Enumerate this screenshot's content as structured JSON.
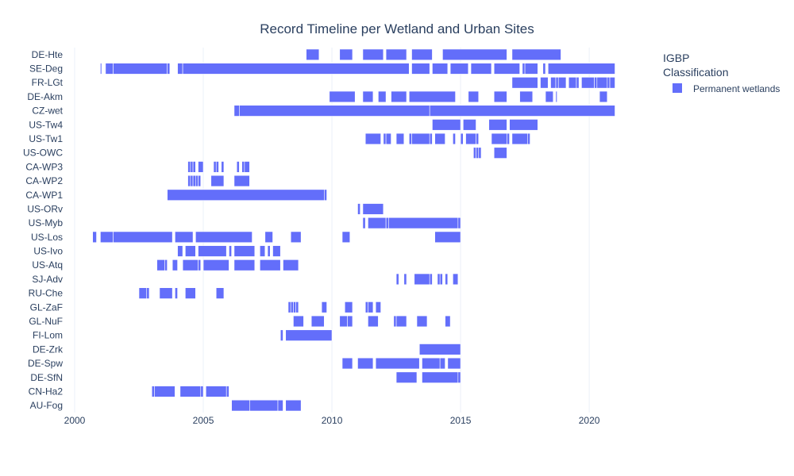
{
  "chart_data": {
    "type": "bar",
    "orientation": "horizontal-timeline",
    "title": "Record Timeline per Wetland and Urban Sites",
    "xlabel": "",
    "ylabel": "",
    "xlim": [
      2000,
      2021.2
    ],
    "x_ticks": [
      2000,
      2005,
      2010,
      2015,
      2020
    ],
    "grid": true,
    "legend": {
      "title_lines": [
        "IGBP",
        "Classification"
      ],
      "position": "top-right",
      "entries": [
        {
          "name": "Permanent wetlands",
          "color": "#636efa"
        }
      ]
    },
    "categories": [
      "AU-Fog",
      "CN-Ha2",
      "DE-SfN",
      "DE-Spw",
      "DE-Zrk",
      "FI-Lom",
      "GL-NuF",
      "GL-ZaF",
      "RU-Che",
      "SJ-Adv",
      "US-Atq",
      "US-Ivo",
      "US-Los",
      "US-Myb",
      "US-ORv",
      "CA-WP1",
      "CA-WP2",
      "CA-WP3",
      "US-OWC",
      "US-Tw1",
      "US-Tw4",
      "CZ-wet",
      "DE-Akm",
      "FR-LGt",
      "SE-Deg",
      "DE-Hte"
    ],
    "series": [
      {
        "name": "Permanent wetlands",
        "color": "#636efa",
        "segments": {
          "AU-Fog": [
            [
              2006.1,
              2006.8
            ],
            [
              2006.8,
              2007.9
            ],
            [
              2007.9,
              2008.1
            ],
            [
              2008.2,
              2008.8
            ]
          ],
          "CN-Ha2": [
            [
              2003.0,
              2003.1
            ],
            [
              2003.1,
              2003.9
            ],
            [
              2004.1,
              2004.9
            ],
            [
              2004.9,
              2005.0
            ],
            [
              2005.1,
              2005.9
            ],
            [
              2005.9,
              2006.0
            ]
          ],
          "DE-SfN": [
            [
              2012.5,
              2013.3
            ],
            [
              2013.5,
              2014.9
            ],
            [
              2014.9,
              2015.0
            ]
          ],
          "DE-Spw": [
            [
              2010.4,
              2010.8
            ],
            [
              2011.0,
              2011.6
            ],
            [
              2011.7,
              2013.4
            ],
            [
              2013.5,
              2014.2
            ],
            [
              2014.2,
              2014.4
            ],
            [
              2014.5,
              2015.0
            ]
          ],
          "DE-Zrk": [
            [
              2013.4,
              2015.0
            ]
          ],
          "FI-Lom": [
            [
              2008.0,
              2008.1
            ],
            [
              2008.2,
              2010.0
            ]
          ],
          "GL-NuF": [
            [
              2008.5,
              2008.9
            ],
            [
              2009.2,
              2009.7
            ],
            [
              2010.3,
              2010.6
            ],
            [
              2010.6,
              2010.8
            ],
            [
              2011.4,
              2011.8
            ],
            [
              2012.4,
              2012.5
            ],
            [
              2012.5,
              2012.9
            ],
            [
              2013.3,
              2013.7
            ],
            [
              2014.4,
              2014.6
            ]
          ],
          "GL-ZaF": [
            [
              2008.3,
              2008.4
            ],
            [
              2008.4,
              2008.5
            ],
            [
              2008.5,
              2008.6
            ],
            [
              2008.6,
              2008.7
            ],
            [
              2009.6,
              2009.8
            ],
            [
              2010.5,
              2010.8
            ],
            [
              2011.3,
              2011.4
            ],
            [
              2011.4,
              2011.6
            ],
            [
              2011.7,
              2011.9
            ]
          ],
          "RU-Che": [
            [
              2002.5,
              2002.8
            ],
            [
              2002.8,
              2002.9
            ],
            [
              2003.3,
              2003.8
            ],
            [
              2003.9,
              2004.0
            ],
            [
              2004.3,
              2004.7
            ],
            [
              2005.5,
              2005.8
            ]
          ],
          "SJ-Adv": [
            [
              2012.5,
              2012.6
            ],
            [
              2012.8,
              2012.9
            ],
            [
              2013.2,
              2013.8
            ],
            [
              2013.8,
              2013.9
            ],
            [
              2014.1,
              2014.2
            ],
            [
              2014.2,
              2014.3
            ],
            [
              2014.4,
              2014.5
            ],
            [
              2014.7,
              2014.9
            ]
          ],
          "US-Atq": [
            [
              2003.2,
              2003.5
            ],
            [
              2003.5,
              2003.6
            ],
            [
              2003.8,
              2004.0
            ],
            [
              2004.2,
              2004.8
            ],
            [
              2004.8,
              2004.9
            ],
            [
              2005.0,
              2006.0
            ],
            [
              2006.2,
              2007.0
            ],
            [
              2007.2,
              2008.0
            ],
            [
              2008.1,
              2008.7
            ]
          ],
          "US-Ivo": [
            [
              2004.0,
              2004.2
            ],
            [
              2004.3,
              2004.7
            ],
            [
              2004.8,
              2005.9
            ],
            [
              2006.0,
              2006.1
            ],
            [
              2006.2,
              2007.0
            ],
            [
              2007.2,
              2007.4
            ],
            [
              2007.5,
              2007.6
            ],
            [
              2007.7,
              2008.0
            ]
          ],
          "US-Los": [
            [
              2000.7,
              2000.85
            ],
            [
              2001.0,
              2001.5
            ],
            [
              2001.5,
              2003.8
            ],
            [
              2003.9,
              2004.6
            ],
            [
              2004.7,
              2006.9
            ],
            [
              2007.4,
              2007.7
            ],
            [
              2008.4,
              2008.8
            ],
            [
              2010.4,
              2010.7
            ],
            [
              2014.0,
              2015.0
            ]
          ],
          "US-Myb": [
            [
              2011.2,
              2011.3
            ],
            [
              2011.4,
              2012.1
            ],
            [
              2012.1,
              2012.2
            ],
            [
              2012.2,
              2014.9
            ],
            [
              2014.9,
              2015.0
            ]
          ],
          "US-ORv": [
            [
              2011.0,
              2011.1
            ],
            [
              2011.2,
              2012.0
            ]
          ],
          "CA-WP1": [
            [
              2003.6,
              2009.7
            ],
            [
              2009.7,
              2009.8
            ]
          ],
          "CA-WP2": [
            [
              2004.4,
              2004.5
            ],
            [
              2004.5,
              2004.6
            ],
            [
              2004.6,
              2004.7
            ],
            [
              2004.7,
              2004.8
            ],
            [
              2004.8,
              2004.9
            ],
            [
              2005.3,
              2005.8
            ],
            [
              2006.2,
              2006.8
            ]
          ],
          "CA-WP3": [
            [
              2004.4,
              2004.5
            ],
            [
              2004.5,
              2004.6
            ],
            [
              2004.6,
              2004.7
            ],
            [
              2004.8,
              2005.0
            ],
            [
              2005.4,
              2005.5
            ],
            [
              2005.5,
              2005.6
            ],
            [
              2005.7,
              2005.8
            ],
            [
              2006.3,
              2006.4
            ],
            [
              2006.5,
              2006.6
            ],
            [
              2006.6,
              2006.8
            ]
          ],
          "US-OWC": [
            [
              2015.5,
              2015.6
            ],
            [
              2015.6,
              2015.7
            ],
            [
              2015.7,
              2015.8
            ],
            [
              2016.3,
              2016.8
            ]
          ],
          "US-Tw1": [
            [
              2011.3,
              2011.9
            ],
            [
              2012.0,
              2012.1
            ],
            [
              2012.1,
              2012.3
            ],
            [
              2012.5,
              2012.8
            ],
            [
              2013.0,
              2013.1
            ],
            [
              2013.1,
              2013.8
            ],
            [
              2013.8,
              2013.9
            ],
            [
              2014.0,
              2014.4
            ],
            [
              2014.7,
              2014.8
            ],
            [
              2015.0,
              2015.1
            ],
            [
              2015.2,
              2015.6
            ],
            [
              2015.6,
              2015.7
            ],
            [
              2016.2,
              2016.8
            ],
            [
              2016.8,
              2016.9
            ],
            [
              2017.0,
              2017.6
            ],
            [
              2017.6,
              2017.7
            ]
          ],
          "US-Tw4": [
            [
              2013.9,
              2015.0
            ],
            [
              2015.1,
              2015.6
            ],
            [
              2016.1,
              2016.8
            ],
            [
              2016.9,
              2018.0
            ]
          ],
          "CZ-wet": [
            [
              2006.2,
              2006.4
            ],
            [
              2006.4,
              2013.8
            ],
            [
              2013.8,
              2021.0
            ]
          ],
          "DE-Akm": [
            [
              2009.9,
              2010.9
            ],
            [
              2011.2,
              2011.6
            ],
            [
              2011.8,
              2012.1
            ],
            [
              2012.3,
              2012.9
            ],
            [
              2013.0,
              2014.8
            ],
            [
              2015.3,
              2015.7
            ],
            [
              2016.3,
              2016.8
            ],
            [
              2017.3,
              2017.8
            ],
            [
              2018.3,
              2018.6
            ],
            [
              2018.7,
              2018.75
            ],
            [
              2020.4,
              2020.7
            ]
          ],
          "FR-LGt": [
            [
              2017.0,
              2018.0
            ],
            [
              2018.1,
              2018.4
            ],
            [
              2018.5,
              2018.7
            ],
            [
              2018.7,
              2018.8
            ],
            [
              2018.8,
              2019.1
            ],
            [
              2019.2,
              2019.5
            ],
            [
              2019.5,
              2019.6
            ],
            [
              2019.7,
              2020.2
            ],
            [
              2020.2,
              2020.3
            ],
            [
              2020.3,
              2020.7
            ],
            [
              2020.7,
              2020.8
            ],
            [
              2020.8,
              2021.0
            ]
          ],
          "SE-Deg": [
            [
              2001.0,
              2001.05
            ],
            [
              2001.2,
              2001.5
            ],
            [
              2001.5,
              2003.6
            ],
            [
              2003.6,
              2003.7
            ],
            [
              2004.0,
              2004.2
            ],
            [
              2004.2,
              2013.0
            ],
            [
              2013.1,
              2013.8
            ],
            [
              2013.9,
              2014.5
            ],
            [
              2014.6,
              2015.3
            ],
            [
              2015.4,
              2016.2
            ],
            [
              2016.3,
              2017.3
            ],
            [
              2017.4,
              2017.5
            ],
            [
              2017.5,
              2018.0
            ],
            [
              2018.2,
              2018.3
            ],
            [
              2018.4,
              2021.0
            ]
          ],
          "DE-Hte": [
            [
              2009.0,
              2009.5
            ],
            [
              2010.3,
              2010.8
            ],
            [
              2011.2,
              2012.0
            ],
            [
              2012.1,
              2012.9
            ],
            [
              2013.1,
              2013.9
            ],
            [
              2014.3,
              2016.8
            ],
            [
              2017.0,
              2018.9
            ]
          ]
        }
      }
    ]
  }
}
